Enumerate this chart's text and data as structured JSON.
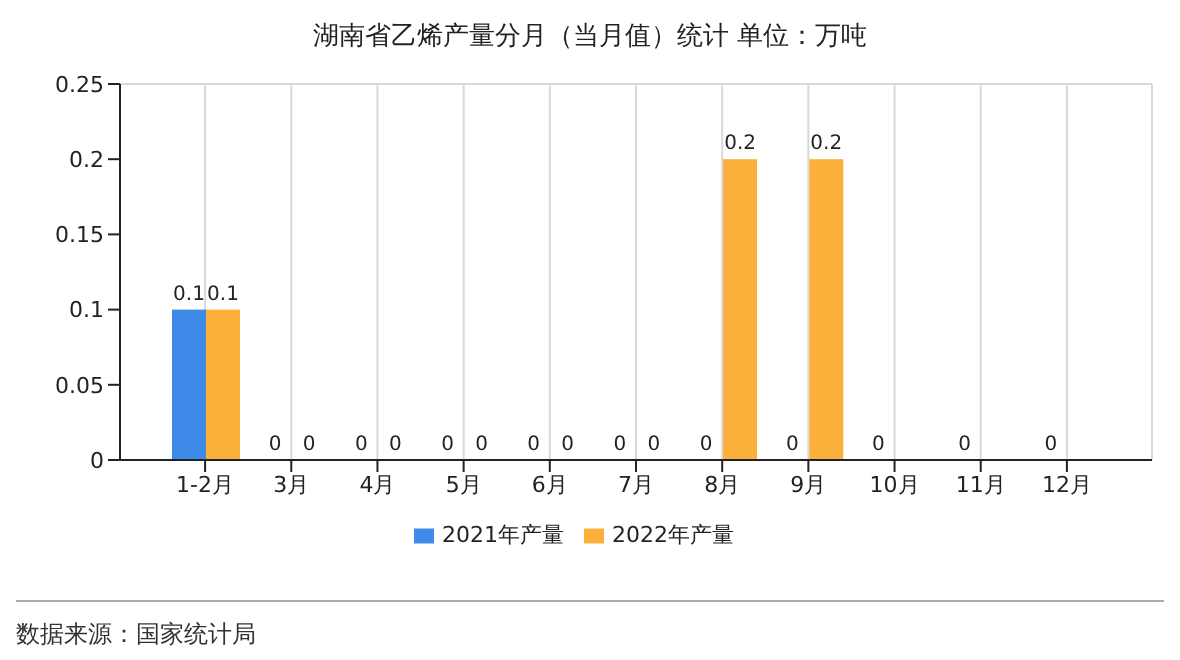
{
  "chart_data": {
    "type": "bar",
    "title": "湖南省乙烯产量分月（当月值）统计  单位：万吨",
    "categories": [
      "1-2月",
      "3月",
      "4月",
      "5月",
      "6月",
      "7月",
      "8月",
      "9月",
      "10月",
      "11月",
      "12月"
    ],
    "series": [
      {
        "name": "2021年产量",
        "color": "#3d8ae8",
        "values": [
          0.1,
          0,
          0,
          0,
          0,
          0,
          0,
          0,
          0,
          0,
          0
        ]
      },
      {
        "name": "2022年产量",
        "color": "#fbb03b",
        "values": [
          0.1,
          0,
          0,
          0,
          0,
          0,
          0.2,
          0.2,
          null,
          null,
          null
        ]
      }
    ],
    "ylim": [
      0,
      0.25
    ],
    "yticks": [
      0,
      0.05,
      0.1,
      0.15,
      0.2,
      0.25
    ],
    "grid": true,
    "legend": "bottom",
    "data_labels": true,
    "annotations": [
      "数据来源：国家统计局"
    ]
  }
}
